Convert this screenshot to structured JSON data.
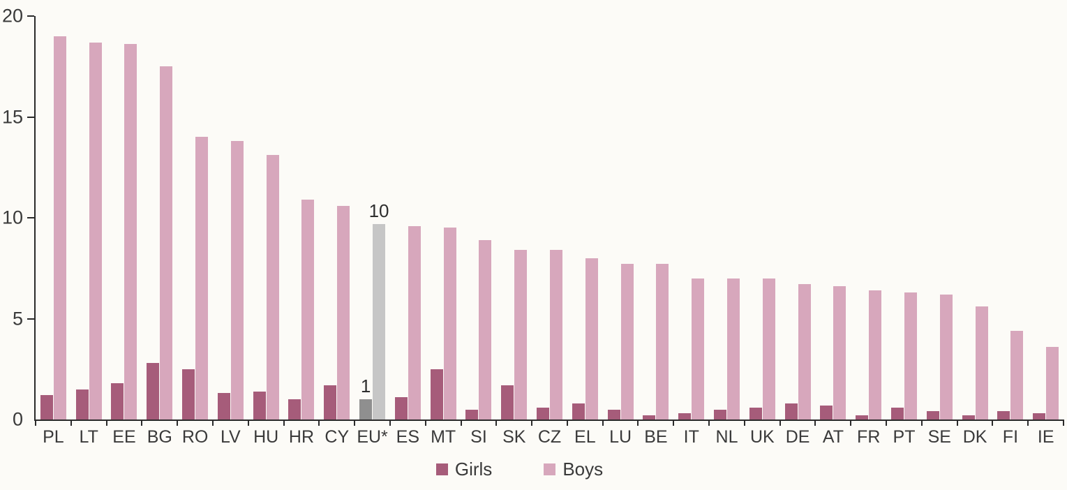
{
  "chart_data": {
    "type": "bar",
    "title": "",
    "xlabel": "",
    "ylabel": "",
    "ylim": [
      0,
      20
    ],
    "yticks": [
      0,
      5,
      10,
      15,
      20
    ],
    "grid": false,
    "legend_position": "bottom",
    "categories": [
      "PL",
      "LT",
      "EE",
      "BG",
      "RO",
      "LV",
      "HU",
      "HR",
      "CY",
      "EU*",
      "ES",
      "MT",
      "SI",
      "SK",
      "CZ",
      "EL",
      "LU",
      "BE",
      "IT",
      "NL",
      "UK",
      "DE",
      "AT",
      "FR",
      "PT",
      "SE",
      "DK",
      "FI",
      "IE"
    ],
    "series": [
      {
        "name": "Girls",
        "color": "#a65c7a",
        "values": [
          1.2,
          1.5,
          1.8,
          2.8,
          2.5,
          1.3,
          1.4,
          1.0,
          1.7,
          1.0,
          1.1,
          2.5,
          0.5,
          1.7,
          0.6,
          0.8,
          0.5,
          0.2,
          0.3,
          0.5,
          0.6,
          0.8,
          0.7,
          0.2,
          0.6,
          0.4,
          0.2,
          0.4,
          0.3
        ]
      },
      {
        "name": "Boys",
        "color": "#d7a7bc",
        "values": [
          19.0,
          18.7,
          18.6,
          17.5,
          14.0,
          13.8,
          13.1,
          10.9,
          10.6,
          9.7,
          9.6,
          9.5,
          8.9,
          8.4,
          8.4,
          8.0,
          7.7,
          7.7,
          7.0,
          7.0,
          7.0,
          6.7,
          6.6,
          6.4,
          6.3,
          6.2,
          5.6,
          4.4,
          3.6
        ]
      }
    ],
    "highlight_category": "EU*",
    "highlight_colors": {
      "Girls": "#8f8f8f",
      "Boys": "#c6c6c6"
    },
    "annotations": [
      {
        "category": "EU*",
        "series": "Girls",
        "text": "1"
      },
      {
        "category": "EU*",
        "series": "Boys",
        "text": "10"
      }
    ]
  },
  "legend": {
    "items": [
      {
        "label": "Girls",
        "color": "#a65c7a"
      },
      {
        "label": "Boys",
        "color": "#d7a7bc"
      }
    ]
  },
  "colors": {
    "background": "#fcfbf7",
    "axis": "#2a2a2a",
    "text": "#3a3a3a"
  }
}
